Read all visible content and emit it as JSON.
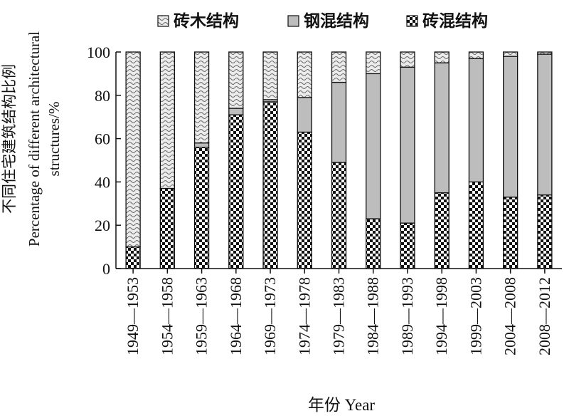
{
  "chart_data": {
    "type": "bar",
    "stacked": true,
    "categories": [
      "1949—1953",
      "1954—1958",
      "1959—1963",
      "1964—1968",
      "1969—1973",
      "1974—1978",
      "1979—1983",
      "1984—1988",
      "1989—1993",
      "1994—1998",
      "1999—2003",
      "2004—2008",
      "2008—2012"
    ],
    "series": [
      {
        "name": "砖混结构",
        "pattern": "checker",
        "values": [
          10,
          37,
          56,
          71,
          77,
          63,
          49,
          23,
          21,
          35,
          40,
          33,
          34
        ]
      },
      {
        "name": "钢混结构",
        "pattern": "gray",
        "values": [
          0,
          0,
          2,
          3,
          1,
          16,
          37,
          67,
          72,
          60,
          57,
          65,
          65
        ]
      },
      {
        "name": "砖木结构",
        "pattern": "wavy",
        "values": [
          90,
          63,
          42,
          26,
          22,
          21,
          14,
          10,
          7,
          5,
          3,
          2,
          1
        ]
      }
    ],
    "legend_order": [
      "砖木结构",
      "钢混结构",
      "砖混结构"
    ],
    "legend_position": "top",
    "ylabel_cn": "不同住宅建筑结构比例",
    "ylabel_en": "Percentage of different architectural structures/%",
    "xlabel": "年份 Year",
    "ylim": [
      0,
      100
    ],
    "yticks": [
      0,
      20,
      40,
      60,
      80,
      100
    ]
  }
}
